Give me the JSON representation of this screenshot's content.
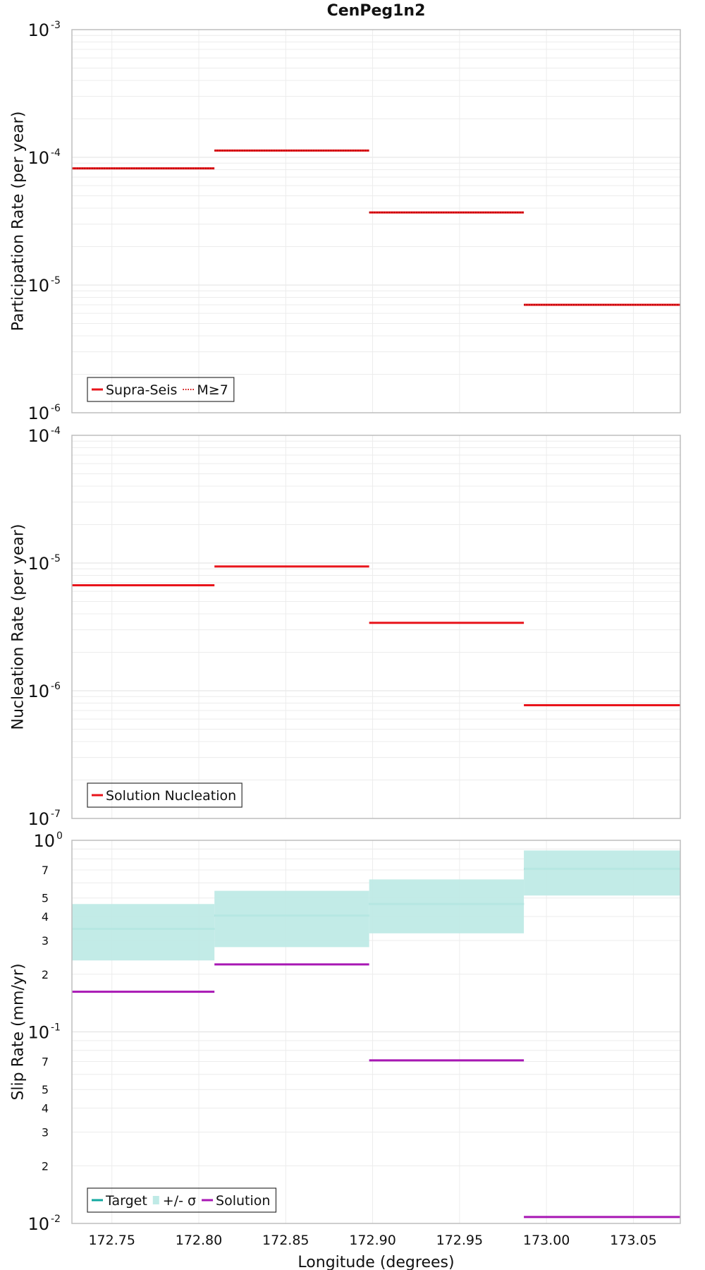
{
  "chart_data": [
    {
      "type": "line",
      "title": "CenPeg1n2",
      "ylabel": "Participation Rate (per year)",
      "xlabel": "",
      "yscale": "log",
      "ylim": [
        1e-06,
        0.001
      ],
      "xlim": [
        172.727,
        173.077
      ],
      "x_ticks": [
        "172.75",
        "172.80",
        "172.85",
        "172.90",
        "172.95",
        "173.00",
        "173.05"
      ],
      "y_ticks": [
        {
          "base": "10",
          "exp": "-3",
          "value": 0.001
        },
        {
          "base": "10",
          "exp": "-4",
          "value": 0.0001
        },
        {
          "base": "10",
          "exp": "-5",
          "value": 1e-05
        },
        {
          "base": "10",
          "exp": "-6",
          "value": 1e-06
        }
      ],
      "grid": true,
      "legend_position": "bottom-left",
      "series": [
        {
          "name": "Supra-Seis",
          "color": "#e8141b",
          "style": "solid",
          "segments": [
            {
              "x": [
                172.727,
                172.809
              ],
              "y": 8.2e-05
            },
            {
              "x": [
                172.809,
                172.898
              ],
              "y": 0.000113
            },
            {
              "x": [
                172.898,
                172.987
              ],
              "y": 3.7e-05
            },
            {
              "x": [
                172.987,
                173.077
              ],
              "y": 7e-06
            }
          ]
        },
        {
          "name": "M≥7",
          "color": "#e8141b",
          "style": "dotted",
          "segments": [
            {
              "x": [
                172.727,
                172.809
              ],
              "y": 8.2e-05
            },
            {
              "x": [
                172.809,
                172.898
              ],
              "y": 0.000113
            },
            {
              "x": [
                172.898,
                172.987
              ],
              "y": 3.7e-05
            },
            {
              "x": [
                172.987,
                173.077
              ],
              "y": 7e-06
            }
          ]
        }
      ]
    },
    {
      "type": "line",
      "title": "",
      "ylabel": "Nucleation Rate (per year)",
      "xlabel": "",
      "yscale": "log",
      "ylim": [
        1e-07,
        0.0001
      ],
      "xlim": [
        172.727,
        173.077
      ],
      "x_ticks": [
        "172.75",
        "172.80",
        "172.85",
        "172.90",
        "172.95",
        "173.00",
        "173.05"
      ],
      "y_ticks": [
        {
          "base": "10",
          "exp": "-4",
          "value": 0.0001
        },
        {
          "base": "10",
          "exp": "-5",
          "value": 1e-05
        },
        {
          "base": "10",
          "exp": "-6",
          "value": 1e-06
        },
        {
          "base": "10",
          "exp": "-7",
          "value": 1e-07
        }
      ],
      "grid": true,
      "legend_position": "bottom-left",
      "series": [
        {
          "name": "Solution Nucleation",
          "color": "#e8141b",
          "style": "solid",
          "segments": [
            {
              "x": [
                172.727,
                172.809
              ],
              "y": 6.7e-06
            },
            {
              "x": [
                172.809,
                172.898
              ],
              "y": 9.4e-06
            },
            {
              "x": [
                172.898,
                172.987
              ],
              "y": 3.4e-06
            },
            {
              "x": [
                172.987,
                173.077
              ],
              "y": 7.7e-07
            }
          ]
        }
      ]
    },
    {
      "type": "line",
      "title": "",
      "ylabel": "Slip Rate (mm/yr)",
      "xlabel": "Longitude (degrees)",
      "yscale": "log",
      "ylim": [
        0.01,
        1
      ],
      "xlim": [
        172.727,
        173.077
      ],
      "x_ticks": [
        "172.75",
        "172.80",
        "172.85",
        "172.90",
        "172.95",
        "173.00",
        "173.05"
      ],
      "y_ticks": [
        {
          "base": "10",
          "exp": "0",
          "value": 1
        },
        {
          "base": "10",
          "exp": "-1",
          "value": 0.1
        },
        {
          "base": "10",
          "exp": "-2",
          "value": 0.01
        }
      ],
      "y_minor_labels": [
        {
          "label": "7",
          "value": 0.7
        },
        {
          "label": "5",
          "value": 0.5
        },
        {
          "label": "4",
          "value": 0.4
        },
        {
          "label": "3",
          "value": 0.3
        },
        {
          "label": "2",
          "value": 0.2
        },
        {
          "label": "7",
          "value": 0.07
        },
        {
          "label": "5",
          "value": 0.05
        },
        {
          "label": "4",
          "value": 0.04
        },
        {
          "label": "3",
          "value": 0.03
        },
        {
          "label": "2",
          "value": 0.02
        }
      ],
      "grid": true,
      "legend_position": "bottom-left",
      "series": [
        {
          "name": "Target",
          "color": "#13a8a0",
          "style": "solid",
          "segments": [
            {
              "x": [
                172.727,
                172.809
              ],
              "y": 0.345
            },
            {
              "x": [
                172.809,
                172.898
              ],
              "y": 0.405
            },
            {
              "x": [
                172.898,
                172.987
              ],
              "y": 0.465
            },
            {
              "x": [
                172.987,
                173.077
              ],
              "y": 0.71
            }
          ]
        },
        {
          "name": "+/- σ",
          "color": "#bfeae6",
          "style": "band",
          "segments": [
            {
              "x": [
                172.727,
                172.809
              ],
              "low": 0.236,
              "high": 0.465
            },
            {
              "x": [
                172.809,
                172.898
              ],
              "low": 0.277,
              "high": 0.545
            },
            {
              "x": [
                172.898,
                172.987
              ],
              "low": 0.327,
              "high": 0.625
            },
            {
              "x": [
                172.987,
                173.077
              ],
              "low": 0.515,
              "high": 0.885
            }
          ]
        },
        {
          "name": "Solution",
          "color": "#a817b4",
          "style": "solid",
          "segments": [
            {
              "x": [
                172.727,
                172.809
              ],
              "y": 0.162
            },
            {
              "x": [
                172.809,
                172.898
              ],
              "y": 0.225
            },
            {
              "x": [
                172.898,
                172.987
              ],
              "y": 0.071
            },
            {
              "x": [
                172.987,
                173.077
              ],
              "y": 0.0108
            }
          ]
        }
      ]
    }
  ],
  "legends": [
    {
      "items": [
        {
          "label": "Supra-Seis",
          "series": 0
        },
        {
          "label": "M≥7",
          "series": 1
        }
      ]
    },
    {
      "items": [
        {
          "label": "Solution Nucleation",
          "series": 0
        }
      ]
    },
    {
      "items": [
        {
          "label": "Target",
          "series": 0
        },
        {
          "label": "+/- σ",
          "series": 1
        },
        {
          "label": "Solution",
          "series": 2
        }
      ]
    }
  ]
}
